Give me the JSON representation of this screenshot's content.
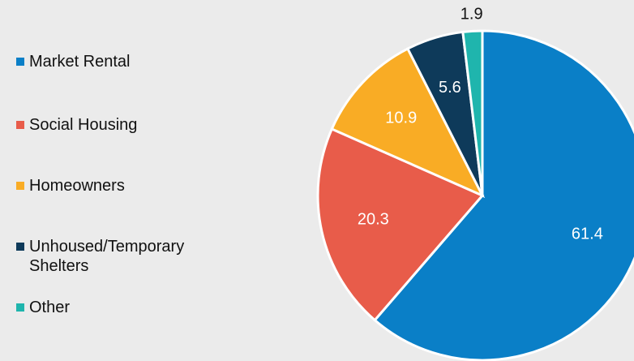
{
  "chart_data": {
    "type": "pie",
    "categories": [
      "Market Rental",
      "Social Housing",
      "Homeowners",
      "Unhoused/Temporary Shelters",
      "Other"
    ],
    "values": [
      61.4,
      20.3,
      10.9,
      5.6,
      1.9
    ],
    "colors": [
      "#0a7fc7",
      "#e85c4a",
      "#f9ac25",
      "#0e3a5a",
      "#1fb5ad"
    ],
    "legend": "left"
  }
}
